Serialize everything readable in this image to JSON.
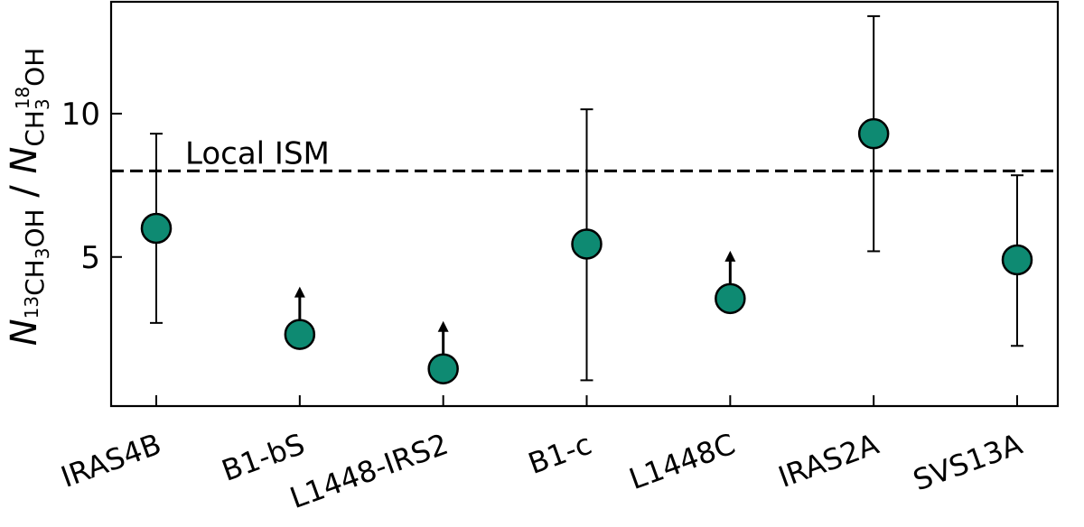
{
  "chart_data": {
    "type": "scatter",
    "categories": [
      "IRAS4B",
      "B1-bS",
      "L1448-IRS2",
      "B1-c",
      "L1448C",
      "IRAS2A",
      "SVS13A"
    ],
    "series": [
      {
        "values": [
          6.0,
          2.3,
          1.1,
          5.45,
          3.55,
          9.3,
          4.9
        ],
        "err_low": [
          3.3,
          null,
          null,
          4.75,
          null,
          4.1,
          3.0
        ],
        "err_high": [
          3.3,
          null,
          null,
          4.7,
          null,
          4.1,
          2.95
        ],
        "lower_limit": [
          false,
          true,
          true,
          false,
          true,
          false,
          false
        ]
      }
    ],
    "yticks": [
      5,
      10
    ],
    "ylim": [
      -0.2,
      13.9
    ],
    "reference_line": {
      "y": 8.0,
      "label": "Local ISM",
      "style": "dashed"
    },
    "ylabel": {
      "N": "N",
      "num_sub_sup": "13",
      "num_sub_rest": "CH",
      "num_sub_3": "3",
      "num_sub_tail": "OH",
      "slash": " / ",
      "den_sub_head": "CH",
      "den_sub_3": "3",
      "den_sub_sup": "18",
      "den_sub_tail": "OH"
    },
    "marker_color": "#0e8a72",
    "grid": false
  }
}
